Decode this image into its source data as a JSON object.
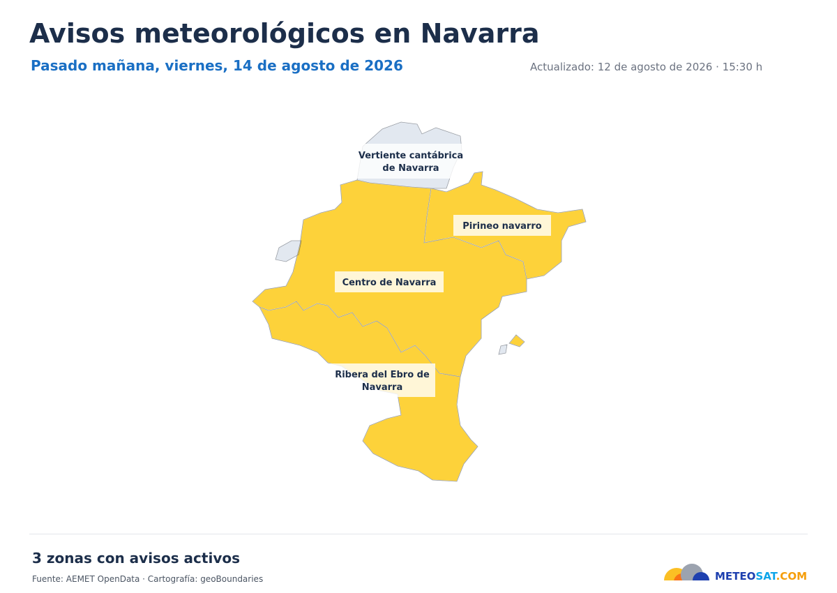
{
  "header": {
    "title": "Avisos meteorológicos en Navarra",
    "subtitle": "Pasado mañana, viernes, 14 de agosto de 2026",
    "updated": "Actualizado: 12 de agosto de 2026 · 15:30 h"
  },
  "map": {
    "zones": [
      {
        "lines": [
          "Vertiente cantábrica",
          "de Navarra"
        ],
        "color": "#e2e8f0"
      },
      {
        "lines": [
          "Pirineo navarro"
        ],
        "color": "#fdd23a"
      },
      {
        "lines": [
          "Centro de Navarra"
        ],
        "color": "#fdd23a"
      },
      {
        "lines": [
          "Ribera del Ebro de",
          "Navarra"
        ],
        "color": "#fdd23a"
      }
    ]
  },
  "footer": {
    "summary": "3 zonas con avisos activos",
    "source": "Fuente: AEMET OpenData · Cartografía: geoBoundaries",
    "logo": [
      "METEO",
      "SAT",
      ".COM"
    ]
  }
}
